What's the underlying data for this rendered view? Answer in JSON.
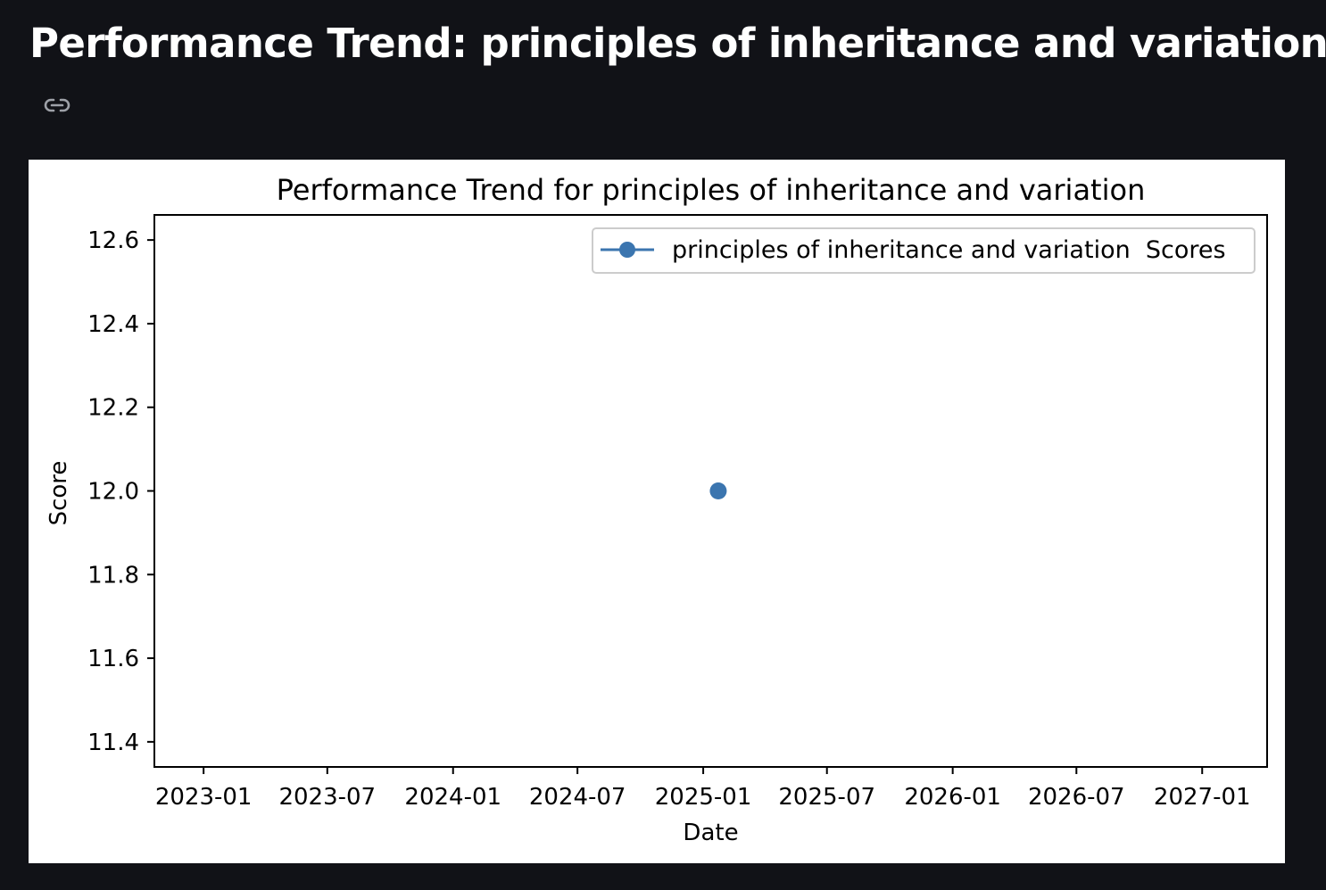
{
  "page": {
    "title": "Performance Trend: principles of inheritance and variation",
    "link_icon": "link-icon"
  },
  "chart_data": {
    "type": "line",
    "title": "Performance Trend for principles of inheritance and variation",
    "xlabel": "Date",
    "ylabel": "Score",
    "x_ticks": [
      "2023-01",
      "2023-07",
      "2024-01",
      "2024-07",
      "2025-01",
      "2025-07",
      "2026-01",
      "2026-07",
      "2027-01"
    ],
    "y_ticks": [
      "11.4",
      "11.6",
      "11.8",
      "12.0",
      "12.2",
      "12.4",
      "12.6"
    ],
    "ylim": [
      11.34,
      12.66
    ],
    "xlim": [
      "2022-10-21",
      "2027-04-06"
    ],
    "grid": false,
    "legend_position": "top-right",
    "series": [
      {
        "name": "principles of inheritance and variation  Scores",
        "color": "#3b75af",
        "marker": "circle",
        "points": [
          {
            "x": "2025-01-23",
            "y": 12.0
          }
        ]
      }
    ]
  }
}
